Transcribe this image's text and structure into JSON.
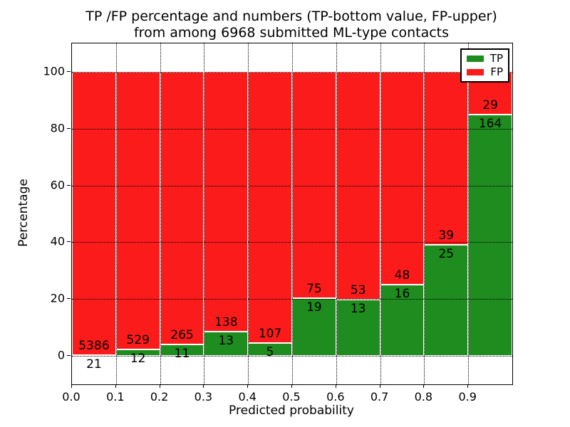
{
  "title": {
    "line1": "TP /FP percentage and numbers (TP-bottom value, FP-upper)",
    "line2": "from among 6968 submitted ML-type contacts"
  },
  "axes": {
    "xlabel": "Predicted probability",
    "ylabel": "Percentage",
    "x_tick_labels": [
      "0.0",
      "0.1",
      "0.2",
      "0.3",
      "0.4",
      "0.5",
      "0.6",
      "0.7",
      "0.8",
      "0.9"
    ],
    "y_tick_labels": [
      "0",
      "20",
      "40",
      "60",
      "80",
      "100"
    ]
  },
  "legend": {
    "items": [
      {
        "label": "TP",
        "color": "#1e8c1e"
      },
      {
        "label": "FP",
        "color": "#fb1b1b"
      }
    ]
  },
  "chart_data": {
    "type": "bar",
    "stacked": true,
    "normalized_to_percent": 100,
    "title": "TP /FP percentage and numbers (TP-bottom value, FP-upper) from among 6968 submitted ML-type contacts",
    "xlabel": "Predicted probability",
    "ylabel": "Percentage",
    "xlim": [
      0.0,
      1.0
    ],
    "ylim": [
      -10,
      110
    ],
    "grid": "dotted",
    "legend_position": "upper right",
    "bin_width": 0.1,
    "bin_starts": [
      0.0,
      0.1,
      0.2,
      0.3,
      0.4,
      0.5,
      0.6,
      0.7,
      0.8,
      0.9
    ],
    "series": [
      {
        "name": "TP",
        "color": "#1e8c1e",
        "counts": [
          21,
          12,
          11,
          13,
          5,
          19,
          13,
          16,
          25,
          164
        ]
      },
      {
        "name": "FP",
        "color": "#fb1b1b",
        "counts": [
          5386,
          529,
          265,
          138,
          107,
          75,
          53,
          48,
          39,
          29
        ]
      }
    ],
    "tp_percent_of_bin": [
      0.39,
      2.22,
      3.99,
      8.61,
      4.46,
      20.21,
      19.7,
      25.0,
      39.06,
      84.97
    ],
    "total_contacts": 6968
  }
}
